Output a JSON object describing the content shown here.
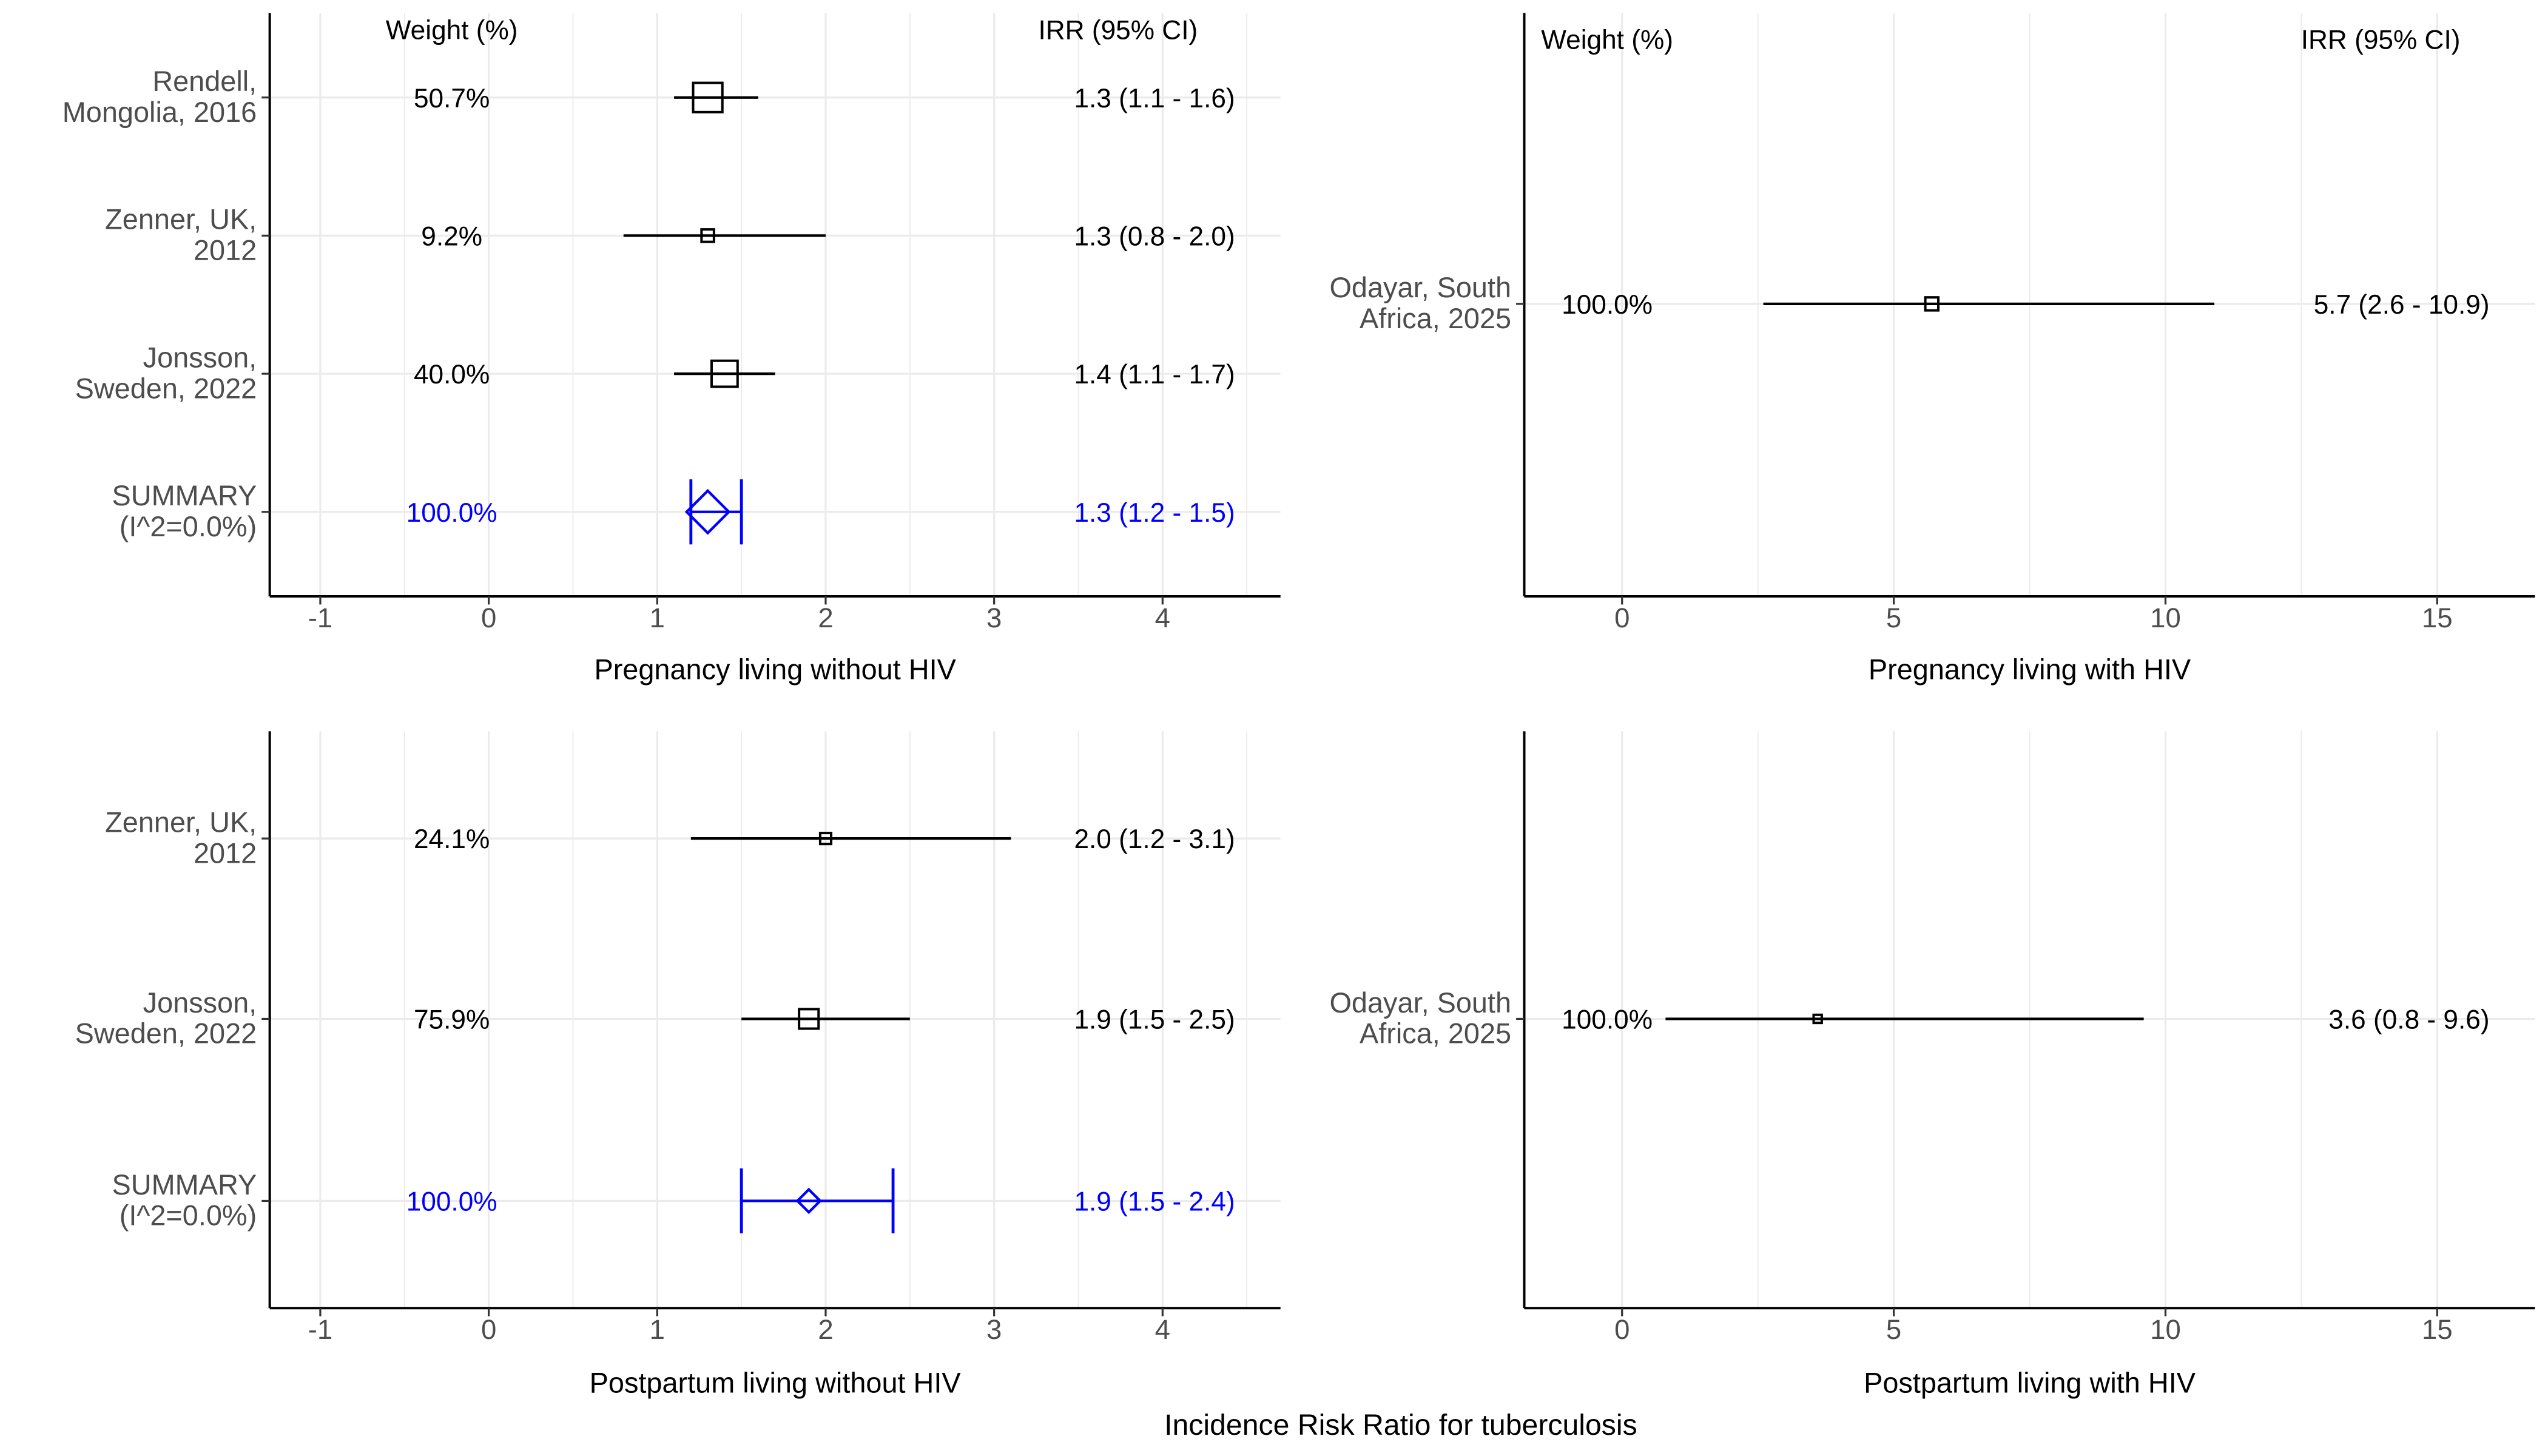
{
  "figure": {
    "caption": "Incidence Risk Ratio for tuberculosis"
  },
  "chart_data": [
    {
      "type": "forest",
      "xlabel": "Pregnancy living without HIV",
      "xlim": [
        -1.3,
        4.7
      ],
      "xticks": [
        -1,
        0,
        1,
        2,
        3,
        4
      ],
      "weight_header": "Weight (%)",
      "ci_header": "IRR (95% CI)",
      "grid": true,
      "rows": [
        {
          "label_lines": [
            "Rendell,",
            "Mongolia, 2016"
          ],
          "weight": "50.7%",
          "weight_value": 50.7,
          "est": 1.3,
          "lo": 1.1,
          "hi": 1.6,
          "ci_text": "1.3 (1.1 -  1.6)",
          "summary": false
        },
        {
          "label_lines": [
            "Zenner, UK,",
            "2012"
          ],
          "weight": "9.2%",
          "weight_value": 9.2,
          "est": 1.3,
          "lo": 0.8,
          "hi": 2.0,
          "ci_text": "1.3 (0.8 -  2.0)",
          "summary": false
        },
        {
          "label_lines": [
            "Jonsson,",
            "Sweden, 2022"
          ],
          "weight": "40.0%",
          "weight_value": 40.0,
          "est": 1.4,
          "lo": 1.1,
          "hi": 1.7,
          "ci_text": "1.4 (1.1 -  1.7)",
          "summary": false
        },
        {
          "label_lines": [
            "SUMMARY",
            "(I^2=0.0%)"
          ],
          "weight": "100.0%",
          "weight_value": 100.0,
          "est": 1.3,
          "lo": 1.2,
          "hi": 1.5,
          "ci_text": "1.3 (1.2 -  1.5)",
          "summary": true
        }
      ]
    },
    {
      "type": "forest",
      "xlabel": "Pregnancy living with HIV",
      "xlim": [
        -1.8,
        16.8
      ],
      "xticks": [
        0,
        5,
        10,
        15
      ],
      "weight_header": "Weight (%)",
      "ci_header": "IRR (95% CI)",
      "grid": true,
      "rows": [
        {
          "label_lines": [
            "Odayar, South",
            "Africa, 2025"
          ],
          "weight": "100.0%",
          "weight_value": 100.0,
          "est": 5.7,
          "lo": 2.6,
          "hi": 10.9,
          "ci_text": "5.7 (2.6 - 10.9)",
          "summary": false
        }
      ]
    },
    {
      "type": "forest",
      "xlabel": "Postpartum living without HIV",
      "xlim": [
        -1.3,
        4.7
      ],
      "xticks": [
        -1,
        0,
        1,
        2,
        3,
        4
      ],
      "weight_header": "",
      "ci_header": "",
      "grid": true,
      "rows": [
        {
          "label_lines": [
            "Zenner, UK,",
            "2012"
          ],
          "weight": "24.1%",
          "weight_value": 24.1,
          "est": 2.0,
          "lo": 1.2,
          "hi": 3.1,
          "ci_text": "2.0 (1.2 -  3.1)",
          "summary": false
        },
        {
          "label_lines": [
            "Jonsson,",
            "Sweden, 2022"
          ],
          "weight": "75.9%",
          "weight_value": 75.9,
          "est": 1.9,
          "lo": 1.5,
          "hi": 2.5,
          "ci_text": "1.9 (1.5 -  2.5)",
          "summary": false
        },
        {
          "label_lines": [
            "SUMMARY",
            "(I^2=0.0%)"
          ],
          "weight": "100.0%",
          "weight_value": 100.0,
          "est": 1.9,
          "lo": 1.5,
          "hi": 2.4,
          "ci_text": "1.9 (1.5 -  2.4)",
          "summary": true
        }
      ]
    },
    {
      "type": "forest",
      "xlabel": "Postpartum living with HIV",
      "xlim": [
        -1.8,
        16.8
      ],
      "xticks": [
        0,
        5,
        10,
        15
      ],
      "weight_header": "",
      "ci_header": "",
      "grid": true,
      "rows": [
        {
          "label_lines": [
            "Odayar, South",
            "Africa, 2025"
          ],
          "weight": "100.0%",
          "weight_value": 100.0,
          "est": 3.6,
          "lo": 0.8,
          "hi": 9.6,
          "ci_text": "3.6 (0.8 -  9.6)",
          "summary": false
        }
      ]
    }
  ],
  "colors": {
    "summary": "#0000ff",
    "study": "#000000",
    "axis_text": "#4d4d4d",
    "grid": "#ebebeb"
  }
}
